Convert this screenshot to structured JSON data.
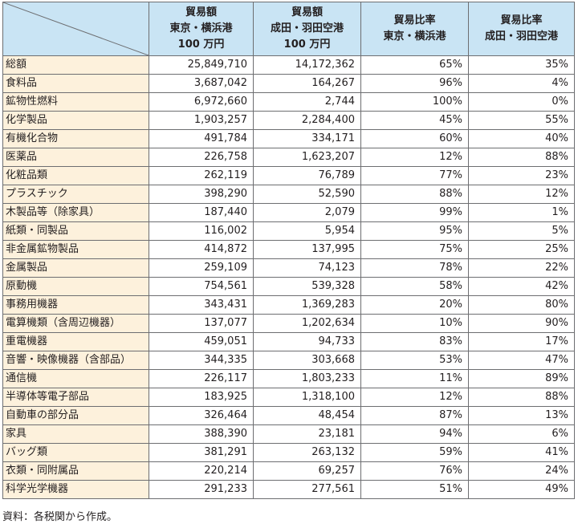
{
  "headers": [
    {
      "lines": [
        "貿易額",
        "東京・横浜港",
        "100 万円"
      ]
    },
    {
      "lines": [
        "貿易額",
        "成田・羽田空港",
        "100 万円"
      ]
    },
    {
      "lines": [
        "貿易比率",
        "東京・横浜港"
      ]
    },
    {
      "lines": [
        "貿易比率",
        "成田・羽田空港"
      ]
    }
  ],
  "rows": [
    {
      "name": "総額",
      "port_value": "25,849,710",
      "airport_value": "14,172,362",
      "port_ratio": "65%",
      "airport_ratio": "35%"
    },
    {
      "name": "食料品",
      "port_value": "3,687,042",
      "airport_value": "164,267",
      "port_ratio": "96%",
      "airport_ratio": "4%"
    },
    {
      "name": "鉱物性燃料",
      "port_value": "6,972,660",
      "airport_value": "2,744",
      "port_ratio": "100%",
      "airport_ratio": "0%"
    },
    {
      "name": "化学製品",
      "port_value": "1,903,257",
      "airport_value": "2,284,400",
      "port_ratio": "45%",
      "airport_ratio": "55%"
    },
    {
      "name": "有機化合物",
      "port_value": "491,784",
      "airport_value": "334,171",
      "port_ratio": "60%",
      "airport_ratio": "40%"
    },
    {
      "name": "医薬品",
      "port_value": "226,758",
      "airport_value": "1,623,207",
      "port_ratio": "12%",
      "airport_ratio": "88%"
    },
    {
      "name": "化粧品類",
      "port_value": "262,119",
      "airport_value": "76,789",
      "port_ratio": "77%",
      "airport_ratio": "23%"
    },
    {
      "name": "プラスチック",
      "port_value": "398,290",
      "airport_value": "52,590",
      "port_ratio": "88%",
      "airport_ratio": "12%"
    },
    {
      "name": "木製品等（除家具）",
      "port_value": "187,440",
      "airport_value": "2,079",
      "port_ratio": "99%",
      "airport_ratio": "1%"
    },
    {
      "name": "紙類・同製品",
      "port_value": "116,002",
      "airport_value": "5,954",
      "port_ratio": "95%",
      "airport_ratio": "5%"
    },
    {
      "name": "非金属鉱物製品",
      "port_value": "414,872",
      "airport_value": "137,995",
      "port_ratio": "75%",
      "airport_ratio": "25%"
    },
    {
      "name": "金属製品",
      "port_value": "259,109",
      "airport_value": "74,123",
      "port_ratio": "78%",
      "airport_ratio": "22%"
    },
    {
      "name": "原動機",
      "port_value": "754,561",
      "airport_value": "539,328",
      "port_ratio": "58%",
      "airport_ratio": "42%"
    },
    {
      "name": "事務用機器",
      "port_value": "343,431",
      "airport_value": "1,369,283",
      "port_ratio": "20%",
      "airport_ratio": "80%"
    },
    {
      "name": "電算機類（含周辺機器）",
      "port_value": "137,077",
      "airport_value": "1,202,634",
      "port_ratio": "10%",
      "airport_ratio": "90%"
    },
    {
      "name": "重電機器",
      "port_value": "459,051",
      "airport_value": "94,733",
      "port_ratio": "83%",
      "airport_ratio": "17%"
    },
    {
      "name": "音響・映像機器（含部品）",
      "port_value": "344,335",
      "airport_value": "303,668",
      "port_ratio": "53%",
      "airport_ratio": "47%"
    },
    {
      "name": "通信機",
      "port_value": "226,117",
      "airport_value": "1,803,233",
      "port_ratio": "11%",
      "airport_ratio": "89%"
    },
    {
      "name": "半導体等電子部品",
      "port_value": "183,925",
      "airport_value": "1,318,100",
      "port_ratio": "12%",
      "airport_ratio": "88%"
    },
    {
      "name": "自動車の部分品",
      "port_value": "326,464",
      "airport_value": "48,454",
      "port_ratio": "87%",
      "airport_ratio": "13%"
    },
    {
      "name": "家具",
      "port_value": "388,390",
      "airport_value": "23,181",
      "port_ratio": "94%",
      "airport_ratio": "6%"
    },
    {
      "name": "バッグ類",
      "port_value": "381,291",
      "airport_value": "263,132",
      "port_ratio": "59%",
      "airport_ratio": "41%"
    },
    {
      "name": "衣類・同附属品",
      "port_value": "220,214",
      "airport_value": "69,257",
      "port_ratio": "76%",
      "airport_ratio": "24%"
    },
    {
      "name": "科学光学機器",
      "port_value": "291,233",
      "airport_value": "277,561",
      "port_ratio": "51%",
      "airport_ratio": "49%"
    }
  ],
  "source_note": "資料：各税関から作成。",
  "colors": {
    "header_bg": "#c9e4f4",
    "name_column_bg": "#fdf1dc",
    "border": "#6d6e71"
  }
}
